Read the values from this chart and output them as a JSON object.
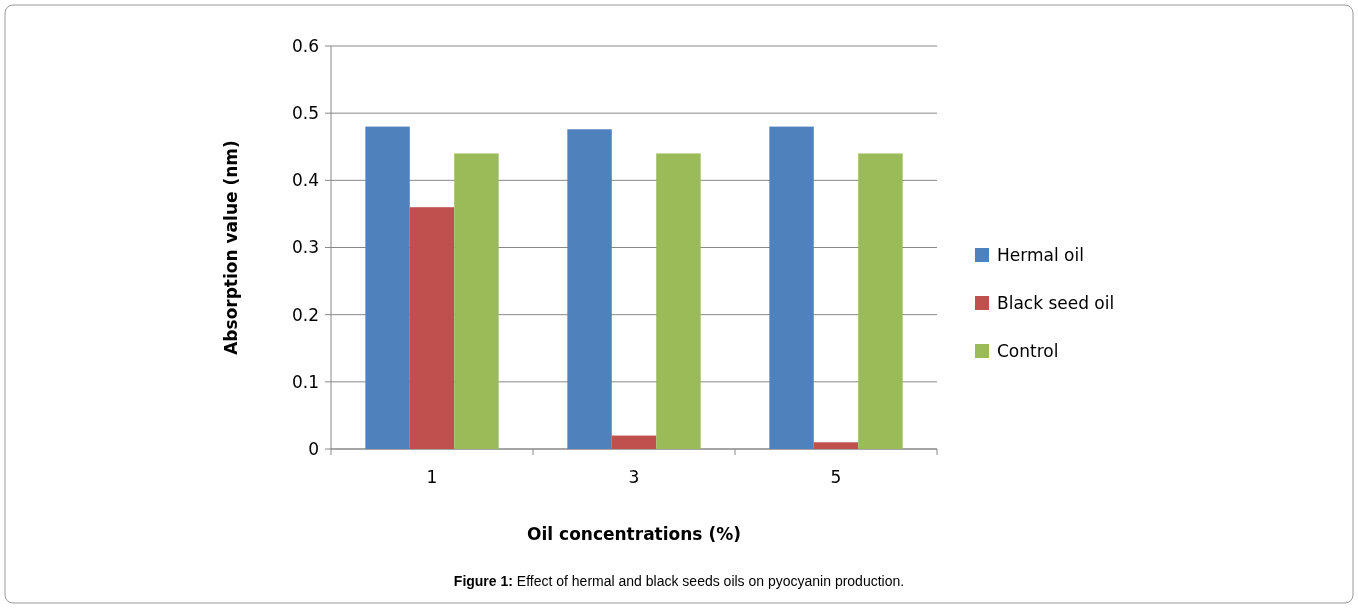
{
  "chart_data": {
    "type": "bar",
    "xlabel": "Oil concentrations (%)",
    "ylabel": "Absorption value (nm)",
    "categories": [
      "1",
      "3",
      "5"
    ],
    "series": [
      {
        "name": "Hermal oil",
        "color": "#4f81bd",
        "values": [
          0.48,
          0.476,
          0.48
        ]
      },
      {
        "name": "Black seed oil",
        "color": "#c0504d",
        "values": [
          0.36,
          0.02,
          0.01
        ]
      },
      {
        "name": "Control",
        "color": "#9bbb59",
        "values": [
          0.44,
          0.44,
          0.44
        ]
      }
    ],
    "ylim": [
      0,
      0.6
    ],
    "yticks": [
      {
        "value": 0,
        "label": "0"
      },
      {
        "value": 0.1,
        "label": "0.1"
      },
      {
        "value": 0.2,
        "label": "0.2"
      },
      {
        "value": 0.3,
        "label": "0.3"
      },
      {
        "value": 0.4,
        "label": "0.4"
      },
      {
        "value": 0.5,
        "label": "0.5"
      },
      {
        "value": 0.6,
        "label": "0.6"
      }
    ],
    "grid": "y",
    "legend": "right",
    "annotations": [
      "Figure 1: Effect of hermal and black seeds oils on pyocyanin production."
    ]
  }
}
